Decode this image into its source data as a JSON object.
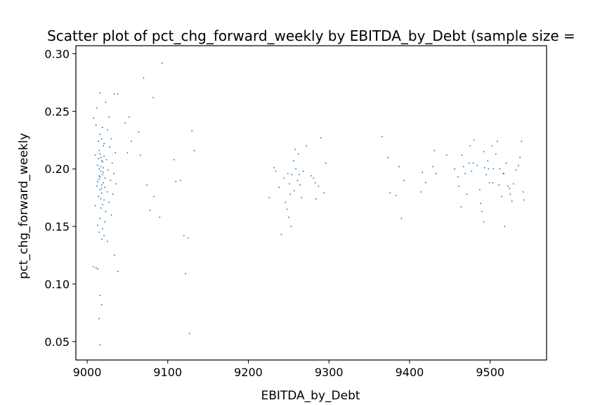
{
  "chart_data": {
    "type": "scatter",
    "title": "Scatter plot of pct_chg_forward_weekly by EBITDA_by_Debt (sample size = ",
    "xlabel": "EBITDA_by_Debt",
    "ylabel": "pct_chg_forward_weekly",
    "xlim": [
      8986,
      9570
    ],
    "ylim": [
      0.034,
      0.307
    ],
    "xticks": [
      9000,
      9100,
      9200,
      9300,
      9400,
      9500
    ],
    "yticks": [
      0.05,
      0.1,
      0.15,
      0.2,
      0.25,
      0.3
    ],
    "xtick_labels": [
      "9000",
      "9100",
      "9200",
      "9300",
      "9400",
      "9500"
    ],
    "ytick_labels": [
      "0.05",
      "0.10",
      "0.15",
      "0.20",
      "0.25",
      "0.30"
    ],
    "grid": false,
    "marker_color": "#1f77b4",
    "series": [
      {
        "points": [
          [
            9016,
            0.266
          ],
          [
            9023,
            0.258
          ],
          [
            9027,
            0.245
          ],
          [
            9034,
            0.265
          ],
          [
            9038,
            0.265
          ],
          [
            9012,
            0.253
          ],
          [
            9008,
            0.244
          ],
          [
            9011,
            0.238
          ],
          [
            9019,
            0.236
          ],
          [
            9025,
            0.234
          ],
          [
            9030,
            0.226
          ],
          [
            9014,
            0.224
          ],
          [
            9021,
            0.222
          ],
          [
            9028,
            0.219
          ],
          [
            9035,
            0.214
          ],
          [
            9010,
            0.212
          ],
          [
            9017,
            0.21
          ],
          [
            9024,
            0.208
          ],
          [
            9031,
            0.205
          ],
          [
            9013,
            0.203
          ],
          [
            9020,
            0.201
          ],
          [
            9026,
            0.199
          ],
          [
            9033,
            0.196
          ],
          [
            9015,
            0.194
          ],
          [
            9022,
            0.192
          ],
          [
            9029,
            0.19
          ],
          [
            9036,
            0.187
          ],
          [
            9012,
            0.185
          ],
          [
            9018,
            0.183
          ],
          [
            9025,
            0.18
          ],
          [
            9032,
            0.178
          ],
          [
            9014,
            0.176
          ],
          [
            9021,
            0.173
          ],
          [
            9027,
            0.171
          ],
          [
            9010,
            0.168
          ],
          [
            9017,
            0.166
          ],
          [
            9023,
            0.163
          ],
          [
            9030,
            0.16
          ],
          [
            9016,
            0.157
          ],
          [
            9022,
            0.154
          ],
          [
            9013,
            0.151
          ],
          [
            9019,
            0.148
          ],
          [
            9015,
            0.145
          ],
          [
            9021,
            0.142
          ],
          [
            9018,
            0.139
          ],
          [
            9025,
            0.137
          ],
          [
            9016,
            0.213
          ],
          [
            9018,
            0.207
          ],
          [
            9017,
            0.198
          ],
          [
            9019,
            0.195
          ],
          [
            9015,
            0.191
          ],
          [
            9020,
            0.188
          ],
          [
            9016,
            0.182
          ],
          [
            9018,
            0.179
          ],
          [
            9017,
            0.174
          ],
          [
            9019,
            0.169
          ],
          [
            9015,
            0.216
          ],
          [
            9020,
            0.22
          ],
          [
            9018,
            0.226
          ],
          [
            9016,
            0.23
          ],
          [
            9017,
            0.202
          ],
          [
            9019,
            0.206
          ],
          [
            9015,
            0.2
          ],
          [
            9020,
            0.197
          ],
          [
            9016,
            0.193
          ],
          [
            9018,
            0.186
          ],
          [
            9014,
            0.209
          ],
          [
            9021,
            0.211
          ],
          [
            9013,
            0.189
          ],
          [
            9022,
            0.184
          ],
          [
            9008,
            0.115
          ],
          [
            9011,
            0.114
          ],
          [
            9013,
            0.113
          ],
          [
            9016,
            0.09
          ],
          [
            9018,
            0.082
          ],
          [
            9015,
            0.07
          ],
          [
            9016,
            0.047
          ],
          [
            9034,
            0.125
          ],
          [
            9038,
            0.111
          ],
          [
            9052,
            0.245
          ],
          [
            9064,
            0.232
          ],
          [
            9047,
            0.24
          ],
          [
            9055,
            0.224
          ],
          [
            9050,
            0.214
          ],
          [
            9066,
            0.212
          ],
          [
            9070,
            0.279
          ],
          [
            9082,
            0.262
          ],
          [
            9093,
            0.292
          ],
          [
            9074,
            0.186
          ],
          [
            9078,
            0.164
          ],
          [
            9083,
            0.176
          ],
          [
            9090,
            0.158
          ],
          [
            9108,
            0.208
          ],
          [
            9110,
            0.189
          ],
          [
            9116,
            0.19
          ],
          [
            9120,
            0.142
          ],
          [
            9122,
            0.109
          ],
          [
            9125,
            0.14
          ],
          [
            9127,
            0.057
          ],
          [
            9130,
            0.233
          ],
          [
            9133,
            0.216
          ],
          [
            9226,
            0.175
          ],
          [
            9232,
            0.201
          ],
          [
            9234,
            0.198
          ],
          [
            9238,
            0.184
          ],
          [
            9241,
            0.143
          ],
          [
            9244,
            0.192
          ],
          [
            9246,
            0.171
          ],
          [
            9248,
            0.165
          ],
          [
            9249,
            0.196
          ],
          [
            9250,
            0.158
          ],
          [
            9251,
            0.187
          ],
          [
            9252,
            0.178
          ],
          [
            9253,
            0.15
          ],
          [
            9254,
            0.195
          ],
          [
            9256,
            0.207
          ],
          [
            9257,
            0.181
          ],
          [
            9258,
            0.217
          ],
          [
            9259,
            0.2
          ],
          [
            9261,
            0.19
          ],
          [
            9262,
            0.213
          ],
          [
            9263,
            0.195
          ],
          [
            9264,
            0.186
          ],
          [
            9266,
            0.175
          ],
          [
            9268,
            0.198
          ],
          [
            9272,
            0.22
          ],
          [
            9278,
            0.194
          ],
          [
            9281,
            0.192
          ],
          [
            9283,
            0.188
          ],
          [
            9284,
            0.174
          ],
          [
            9287,
            0.185
          ],
          [
            9290,
            0.227
          ],
          [
            9294,
            0.179
          ],
          [
            9296,
            0.205
          ],
          [
            9366,
            0.228
          ],
          [
            9373,
            0.21
          ],
          [
            9376,
            0.179
          ],
          [
            9383,
            0.177
          ],
          [
            9387,
            0.202
          ],
          [
            9390,
            0.157
          ],
          [
            9393,
            0.19
          ],
          [
            9414,
            0.18
          ],
          [
            9416,
            0.197
          ],
          [
            9420,
            0.188
          ],
          [
            9429,
            0.202
          ],
          [
            9431,
            0.216
          ],
          [
            9433,
            0.196
          ],
          [
            9446,
            0.212
          ],
          [
            9456,
            0.2
          ],
          [
            9461,
            0.185
          ],
          [
            9464,
            0.167
          ],
          [
            9467,
            0.202
          ],
          [
            9469,
            0.196
          ],
          [
            9471,
            0.178
          ],
          [
            9474,
            0.205
          ],
          [
            9477,
            0.198
          ],
          [
            9480,
            0.225
          ],
          [
            9484,
            0.203
          ],
          [
            9487,
            0.182
          ],
          [
            9490,
            0.163
          ],
          [
            9492,
            0.215
          ],
          [
            9493,
            0.201
          ],
          [
            9495,
            0.195
          ],
          [
            9497,
            0.207
          ],
          [
            9499,
            0.188
          ],
          [
            9502,
            0.22
          ],
          [
            9504,
            0.2
          ],
          [
            9507,
            0.213
          ],
          [
            9509,
            0.224
          ],
          [
            9511,
            0.186
          ],
          [
            9512,
            0.2
          ],
          [
            9514,
            0.176
          ],
          [
            9516,
            0.196
          ],
          [
            9518,
            0.15
          ],
          [
            9520,
            0.205
          ],
          [
            9522,
            0.185
          ],
          [
            9525,
            0.178
          ],
          [
            9527,
            0.172
          ],
          [
            9529,
            0.187
          ],
          [
            9532,
            0.199
          ],
          [
            9535,
            0.203
          ],
          [
            9537,
            0.21
          ],
          [
            9539,
            0.224
          ],
          [
            9541,
            0.18
          ],
          [
            9542,
            0.173
          ],
          [
            9460,
            0.193
          ],
          [
            9475,
            0.22
          ],
          [
            9488,
            0.17
          ],
          [
            9503,
            0.188
          ],
          [
            9517,
            0.196
          ],
          [
            9498,
            0.2
          ],
          [
            9465,
            0.212
          ],
          [
            9479,
            0.205
          ],
          [
            9524,
            0.183
          ],
          [
            9492,
            0.154
          ]
        ]
      }
    ]
  }
}
